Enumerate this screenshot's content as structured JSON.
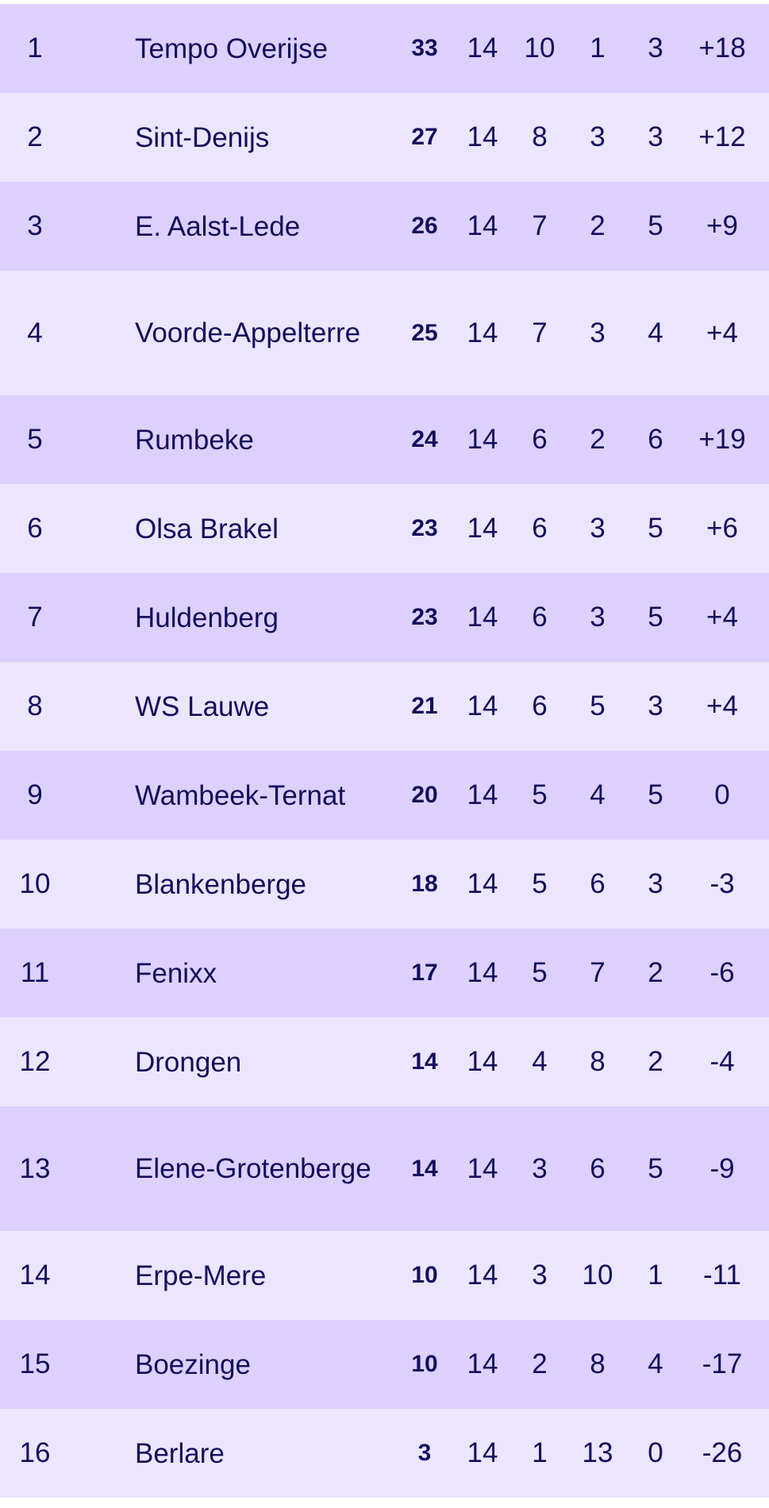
{
  "standings": [
    {
      "rank": "1",
      "team": "Tempo Overijse",
      "pts": "33",
      "gp": "14",
      "w": "10",
      "l": "1",
      "d": "3",
      "gd": "+18"
    },
    {
      "rank": "2",
      "team": "Sint-Denijs",
      "pts": "27",
      "gp": "14",
      "w": "8",
      "l": "3",
      "d": "3",
      "gd": "+12"
    },
    {
      "rank": "3",
      "team": "E. Aalst-Lede",
      "pts": "26",
      "gp": "14",
      "w": "7",
      "l": "2",
      "d": "5",
      "gd": "+9"
    },
    {
      "rank": "4",
      "team": "Voorde-Appelterre",
      "pts": "25",
      "gp": "14",
      "w": "7",
      "l": "3",
      "d": "4",
      "gd": "+4"
    },
    {
      "rank": "5",
      "team": "Rumbeke",
      "pts": "24",
      "gp": "14",
      "w": "6",
      "l": "2",
      "d": "6",
      "gd": "+19"
    },
    {
      "rank": "6",
      "team": "Olsa Brakel",
      "pts": "23",
      "gp": "14",
      "w": "6",
      "l": "3",
      "d": "5",
      "gd": "+6"
    },
    {
      "rank": "7",
      "team": "Huldenberg",
      "pts": "23",
      "gp": "14",
      "w": "6",
      "l": "3",
      "d": "5",
      "gd": "+4"
    },
    {
      "rank": "8",
      "team": "WS Lauwe",
      "pts": "21",
      "gp": "14",
      "w": "6",
      "l": "5",
      "d": "3",
      "gd": "+4"
    },
    {
      "rank": "9",
      "team": "Wambeek-Ternat",
      "pts": "20",
      "gp": "14",
      "w": "5",
      "l": "4",
      "d": "5",
      "gd": "0"
    },
    {
      "rank": "10",
      "team": "Blankenberge",
      "pts": "18",
      "gp": "14",
      "w": "5",
      "l": "6",
      "d": "3",
      "gd": "-3"
    },
    {
      "rank": "11",
      "team": "Fenixx",
      "pts": "17",
      "gp": "14",
      "w": "5",
      "l": "7",
      "d": "2",
      "gd": "-6"
    },
    {
      "rank": "12",
      "team": "Drongen",
      "pts": "14",
      "gp": "14",
      "w": "4",
      "l": "8",
      "d": "2",
      "gd": "-4"
    },
    {
      "rank": "13",
      "team": "Elene-Grotenberge",
      "pts": "14",
      "gp": "14",
      "w": "3",
      "l": "6",
      "d": "5",
      "gd": "-9"
    },
    {
      "rank": "14",
      "team": "Erpe-Mere",
      "pts": "10",
      "gp": "14",
      "w": "3",
      "l": "10",
      "d": "1",
      "gd": "-11"
    },
    {
      "rank": "15",
      "team": "Boezinge",
      "pts": "10",
      "gp": "14",
      "w": "2",
      "l": "8",
      "d": "4",
      "gd": "-17"
    },
    {
      "rank": "16",
      "team": "Berlare",
      "pts": "3",
      "gp": "14",
      "w": "1",
      "l": "13",
      "d": "0",
      "gd": "-26"
    }
  ],
  "colors": {
    "row_odd": "#ddd0fd",
    "row_even": "#ebe5fd",
    "text": "#140d5c"
  }
}
